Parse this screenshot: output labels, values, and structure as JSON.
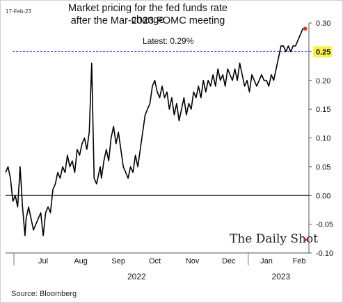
{
  "header": {
    "date_stamp": "17-Feb-23",
    "title_line1": "Market pricing for the fed funds rate change",
    "title_line2": "after the Mar-2023 FOMC meeting",
    "latest": "Latest:  0.29%"
  },
  "footer": {
    "source": "Source: Bloomberg",
    "brand": "The Daily Shot"
  },
  "colors": {
    "line": "#000000",
    "reference": "#1f2fd6",
    "highlight": "#f7f050",
    "last_point": "#e03030"
  },
  "chart_data": {
    "type": "line",
    "title": "Market pricing for the fed funds rate change after the Mar-2023 FOMC meeting",
    "xlabel": "",
    "ylabel": "",
    "ylim": [
      -0.1,
      0.3
    ],
    "yticks": [
      "0.30",
      "0.25",
      "0.20",
      "0.15",
      "0.10",
      "0.05",
      "0.00",
      "-0.05",
      "-0.10"
    ],
    "y_tick_values": [
      0.3,
      0.25,
      0.2,
      0.15,
      0.1,
      0.05,
      0.0,
      -0.05,
      -0.1
    ],
    "reference_line": {
      "value": 0.25,
      "label": "0.25"
    },
    "xlim": [
      "2022-06-15",
      "2023-02-20"
    ],
    "x_month_labels": [
      "Jul",
      "Aug",
      "Sep",
      "Oct",
      "Nov",
      "Dec",
      "Jan",
      "Feb"
    ],
    "x_month_dates": [
      "2022-07-16",
      "2022-08-16",
      "2022-09-16",
      "2022-10-16",
      "2022-11-16",
      "2022-12-16",
      "2023-01-16",
      "2023-02-12"
    ],
    "x_year_labels": [
      "2022",
      "2023"
    ],
    "x_year_dates": [
      "2022-10-01",
      "2023-01-28"
    ],
    "legend": "none",
    "grid": false,
    "series": [
      {
        "x": [
          "2022-06-15",
          "2022-06-17",
          "2022-06-19",
          "2022-06-21",
          "2022-06-23",
          "2022-06-25",
          "2022-06-27",
          "2022-06-29",
          "2022-07-01",
          "2022-07-02",
          "2022-07-04",
          "2022-07-06",
          "2022-07-08",
          "2022-07-10",
          "2022-07-12",
          "2022-07-14",
          "2022-07-16",
          "2022-07-18",
          "2022-07-20",
          "2022-07-22",
          "2022-07-24",
          "2022-07-26",
          "2022-07-28",
          "2022-07-30",
          "2022-08-01",
          "2022-08-03",
          "2022-08-05",
          "2022-08-07",
          "2022-08-09",
          "2022-08-11",
          "2022-08-13",
          "2022-08-15",
          "2022-08-17",
          "2022-08-19",
          "2022-08-21",
          "2022-08-23",
          "2022-08-25",
          "2022-08-27",
          "2022-08-29",
          "2022-08-31",
          "2022-09-01",
          "2022-09-02",
          "2022-09-04",
          "2022-09-06",
          "2022-09-08",
          "2022-09-10",
          "2022-09-12",
          "2022-09-14",
          "2022-09-16",
          "2022-09-18",
          "2022-09-20",
          "2022-09-22",
          "2022-09-24",
          "2022-09-26",
          "2022-09-28",
          "2022-09-30",
          "2022-10-02",
          "2022-10-04",
          "2022-10-06",
          "2022-10-08",
          "2022-10-10",
          "2022-10-12",
          "2022-10-14",
          "2022-10-16",
          "2022-10-18",
          "2022-10-20",
          "2022-10-22",
          "2022-10-24",
          "2022-10-26",
          "2022-10-28",
          "2022-10-30",
          "2022-11-01",
          "2022-11-03",
          "2022-11-05",
          "2022-11-07",
          "2022-11-09",
          "2022-11-11",
          "2022-11-13",
          "2022-11-15",
          "2022-11-17",
          "2022-11-19",
          "2022-11-21",
          "2022-11-23",
          "2022-11-25",
          "2022-11-27",
          "2022-11-29",
          "2022-12-01",
          "2022-12-03",
          "2022-12-05",
          "2022-12-07",
          "2022-12-09",
          "2022-12-11",
          "2022-12-13",
          "2022-12-15",
          "2022-12-17",
          "2022-12-19",
          "2022-12-21",
          "2022-12-23",
          "2022-12-25",
          "2022-12-27",
          "2022-12-29",
          "2022-12-31",
          "2023-01-02",
          "2023-01-04",
          "2023-01-06",
          "2023-01-08",
          "2023-01-10",
          "2023-01-12",
          "2023-01-14",
          "2023-01-16",
          "2023-01-18",
          "2023-01-20",
          "2023-01-22",
          "2023-01-24",
          "2023-01-26",
          "2023-01-28",
          "2023-01-30",
          "2023-02-01",
          "2023-02-03",
          "2023-02-05",
          "2023-02-07",
          "2023-02-09",
          "2023-02-11",
          "2023-02-13",
          "2023-02-15",
          "2023-02-17"
        ],
        "y": [
          0.04,
          0.05,
          0.03,
          -0.01,
          0.0,
          -0.02,
          0.05,
          -0.02,
          -0.07,
          -0.04,
          -0.02,
          -0.04,
          -0.06,
          -0.05,
          -0.04,
          -0.03,
          -0.07,
          -0.03,
          -0.02,
          -0.03,
          0.01,
          0.02,
          0.04,
          0.03,
          0.05,
          0.04,
          0.07,
          0.05,
          0.06,
          0.04,
          0.08,
          0.07,
          0.09,
          0.1,
          0.08,
          0.11,
          0.23,
          0.03,
          0.02,
          0.04,
          0.05,
          0.03,
          0.06,
          0.08,
          0.06,
          0.1,
          0.12,
          0.09,
          0.11,
          0.08,
          0.05,
          0.04,
          0.03,
          0.05,
          0.04,
          0.07,
          0.05,
          0.08,
          0.11,
          0.14,
          0.15,
          0.16,
          0.19,
          0.2,
          0.18,
          0.17,
          0.19,
          0.17,
          0.18,
          0.15,
          0.17,
          0.14,
          0.16,
          0.13,
          0.15,
          0.17,
          0.14,
          0.16,
          0.15,
          0.18,
          0.17,
          0.19,
          0.17,
          0.2,
          0.18,
          0.2,
          0.19,
          0.21,
          0.19,
          0.22,
          0.2,
          0.21,
          0.19,
          0.22,
          0.21,
          0.2,
          0.22,
          0.2,
          0.23,
          0.21,
          0.19,
          0.2,
          0.18,
          0.21,
          0.2,
          0.19,
          0.2,
          0.21,
          0.2,
          0.2,
          0.19,
          0.21,
          0.2,
          0.22,
          0.24,
          0.26,
          0.26,
          0.25,
          0.26,
          0.25,
          0.26,
          0.26,
          0.27,
          0.28,
          0.29,
          0.29
        ]
      }
    ],
    "latest_value": 0.29
  }
}
